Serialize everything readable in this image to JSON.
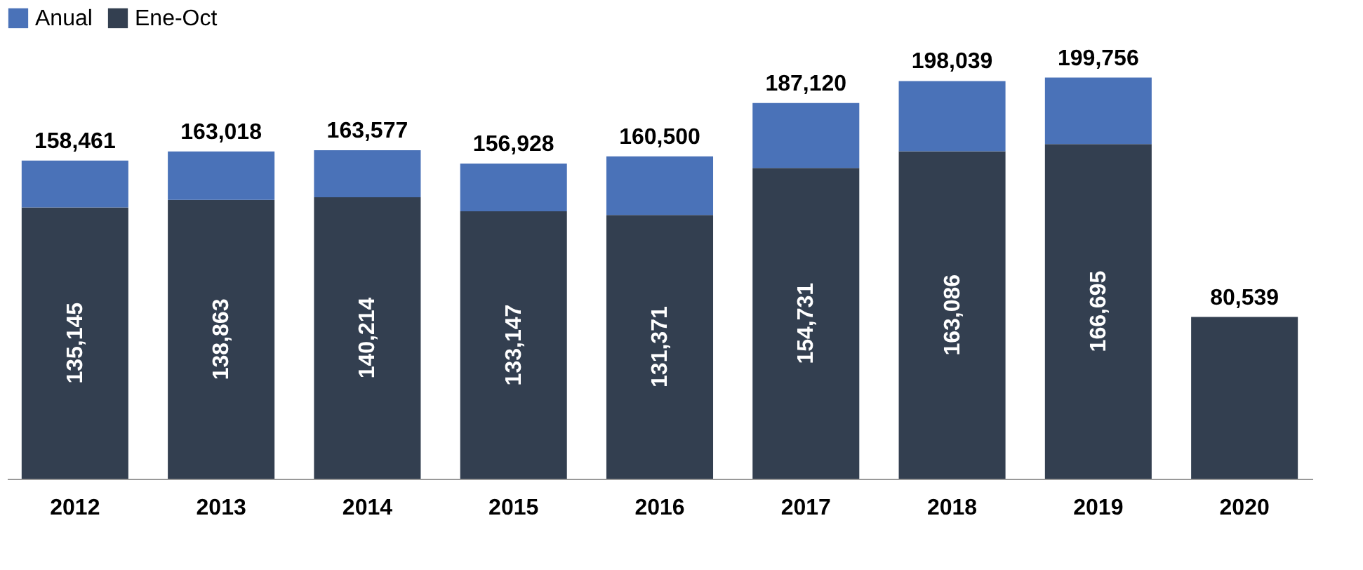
{
  "chart_data": {
    "type": "bar",
    "stacked": true,
    "legend": "top",
    "categories": [
      "2012",
      "2013",
      "2014",
      "2015",
      "2016",
      "2017",
      "2018",
      "2019",
      "2020"
    ],
    "series": [
      {
        "name": "Ene-Oct",
        "color": "#333f50",
        "values": [
          135145,
          138863,
          140214,
          133147,
          131371,
          154731,
          163086,
          166695,
          80539
        ],
        "value_labels": [
          "135,145",
          "138,863",
          "140,214",
          "133,147",
          "131,371",
          "154,731",
          "163,086",
          "166,695",
          null
        ]
      },
      {
        "name": "Anual",
        "color": "#4a72b8",
        "values": [
          23316,
          24155,
          23363,
          23781,
          29129,
          32389,
          34953,
          33061,
          null
        ]
      }
    ],
    "totals": [
      "158,461",
      "163,018",
      "163,577",
      "156,928",
      "160,500",
      "187,120",
      "198,039",
      "199,756",
      "80,539"
    ]
  }
}
